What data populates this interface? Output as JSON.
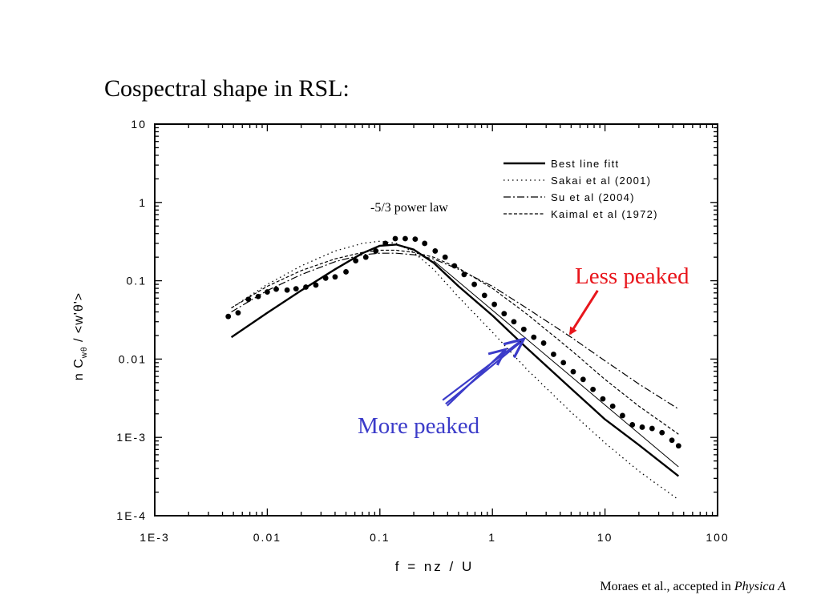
{
  "slide": {
    "title": "Cospectral shape in RSL:",
    "citation_text": "Moraes et al., accepted in ",
    "citation_journal": "Physica A"
  },
  "chart_data": {
    "type": "line",
    "xscale": "log",
    "yscale": "log",
    "xlim": [
      0.001,
      100
    ],
    "ylim": [
      0.0001,
      10
    ],
    "xlabel": "f = nz / U",
    "ylabel": "n C_wθ / <w'θ'>",
    "ylabel_parts": {
      "main": "n C",
      "sub": "wθ",
      "rest": " / <w'θ'>"
    },
    "x_ticks": [
      {
        "value": 0.001,
        "label": "1E-3"
      },
      {
        "value": 0.01,
        "label": "0.01"
      },
      {
        "value": 0.1,
        "label": "0.1"
      },
      {
        "value": 1,
        "label": "1"
      },
      {
        "value": 10,
        "label": "10"
      },
      {
        "value": 100,
        "label": "100"
      }
    ],
    "y_ticks": [
      {
        "value": 10,
        "label": "10"
      },
      {
        "value": 1,
        "label": "1"
      },
      {
        "value": 0.1,
        "label": "0.1"
      },
      {
        "value": 0.01,
        "label": "0.01"
      },
      {
        "value": 0.001,
        "label": "1E-3"
      },
      {
        "value": 0.0001,
        "label": "1E-4"
      }
    ],
    "grid": false,
    "legend": {
      "placement": "top-right",
      "entries": [
        {
          "label": "Best line fitt",
          "style": "solid",
          "color": "#000000"
        },
        {
          "label": "Sakai et al (2001)",
          "style": "dotted",
          "color": "#000000"
        },
        {
          "label": "Su  et al (2004)",
          "style": "dashdot",
          "color": "#000000"
        },
        {
          "label": "Kaimal et al (1972)",
          "style": "dashed",
          "color": "#000000"
        }
      ]
    },
    "series": [
      {
        "name": "Best line fitt",
        "style": "solid",
        "x": [
          0.0048,
          0.01,
          0.02,
          0.04,
          0.07,
          0.1,
          0.14,
          0.2,
          0.3,
          0.5,
          1,
          2,
          5,
          10,
          20,
          45
        ],
        "y": [
          0.019,
          0.039,
          0.075,
          0.14,
          0.225,
          0.28,
          0.29,
          0.25,
          0.17,
          0.085,
          0.036,
          0.014,
          0.0042,
          0.0017,
          0.0008,
          0.00032
        ]
      },
      {
        "name": "Sakai et al (2001)",
        "style": "dotted",
        "x": [
          0.0048,
          0.01,
          0.02,
          0.04,
          0.07,
          0.1,
          0.14,
          0.2,
          0.3,
          0.5,
          1,
          2,
          5,
          10,
          20,
          45
        ],
        "y": [
          0.045,
          0.09,
          0.155,
          0.24,
          0.3,
          0.32,
          0.3,
          0.23,
          0.14,
          0.062,
          0.022,
          0.0075,
          0.0021,
          0.00085,
          0.00037,
          0.00016
        ]
      },
      {
        "name": "Su  et al (2004)",
        "style": "dashdot",
        "x": [
          0.0048,
          0.01,
          0.02,
          0.04,
          0.07,
          0.1,
          0.14,
          0.2,
          0.3,
          0.5,
          1,
          2,
          5,
          10,
          20,
          45
        ],
        "y": [
          0.04,
          0.075,
          0.12,
          0.175,
          0.215,
          0.225,
          0.225,
          0.215,
          0.19,
          0.14,
          0.085,
          0.045,
          0.019,
          0.0095,
          0.0048,
          0.0023
        ]
      },
      {
        "name": "Kaimal et al (1972)",
        "style": "dashed",
        "x": [
          0.0048,
          0.01,
          0.02,
          0.04,
          0.07,
          0.1,
          0.14,
          0.2,
          0.3,
          0.5,
          1,
          2,
          5,
          10,
          20,
          45
        ],
        "y": [
          0.045,
          0.085,
          0.135,
          0.19,
          0.23,
          0.245,
          0.245,
          0.23,
          0.2,
          0.145,
          0.08,
          0.038,
          0.013,
          0.0055,
          0.0025,
          0.0011
        ]
      },
      {
        "name": "Observations",
        "style": "markers",
        "x": [
          0.0045,
          0.0055,
          0.0068,
          0.0083,
          0.01,
          0.012,
          0.015,
          0.018,
          0.022,
          0.027,
          0.033,
          0.04,
          0.05,
          0.061,
          0.075,
          0.092,
          0.112,
          0.137,
          0.168,
          0.206,
          0.25,
          0.31,
          0.38,
          0.46,
          0.56,
          0.69,
          0.85,
          1.04,
          1.27,
          1.55,
          1.9,
          2.33,
          2.85,
          3.49,
          4.27,
          5.22,
          6.39,
          7.82,
          9.57,
          11.7,
          14.3,
          17.5,
          21.4,
          26.2,
          32.1,
          39.3,
          45
        ],
        "y": [
          0.035,
          0.039,
          0.058,
          0.063,
          0.072,
          0.078,
          0.076,
          0.079,
          0.083,
          0.088,
          0.108,
          0.112,
          0.13,
          0.18,
          0.2,
          0.24,
          0.3,
          0.345,
          0.345,
          0.34,
          0.3,
          0.24,
          0.2,
          0.155,
          0.12,
          0.09,
          0.065,
          0.05,
          0.038,
          0.03,
          0.024,
          0.019,
          0.016,
          0.0115,
          0.009,
          0.0069,
          0.0055,
          0.0041,
          0.0031,
          0.0025,
          0.0019,
          0.00145,
          0.00135,
          0.0013,
          0.00115,
          0.00092,
          0.00078
        ]
      },
      {
        "name": "-5/3 power law",
        "style": "thin-solid",
        "x": [
          0.3,
          45
        ],
        "y": [
          0.18,
          0.00042
        ]
      }
    ],
    "annotations": [
      {
        "text": "-5/3 power law",
        "x": 0.1,
        "y": 0.92,
        "color": "#000000"
      },
      {
        "text": "Less peaked",
        "x": 10.7,
        "y": 0.1,
        "color": "#e8161c",
        "arrow_from": [
          8.6,
          0.075
        ],
        "arrow_to": [
          4.9,
          0.021
        ]
      },
      {
        "text": "More peaked",
        "x": 0.011,
        "y": 0.0016,
        "color": "#3b3bc9",
        "arrow_from": [
          0.7,
          0.0045
        ],
        "arrow_to": [
          1.9,
          0.018
        ]
      }
    ]
  }
}
